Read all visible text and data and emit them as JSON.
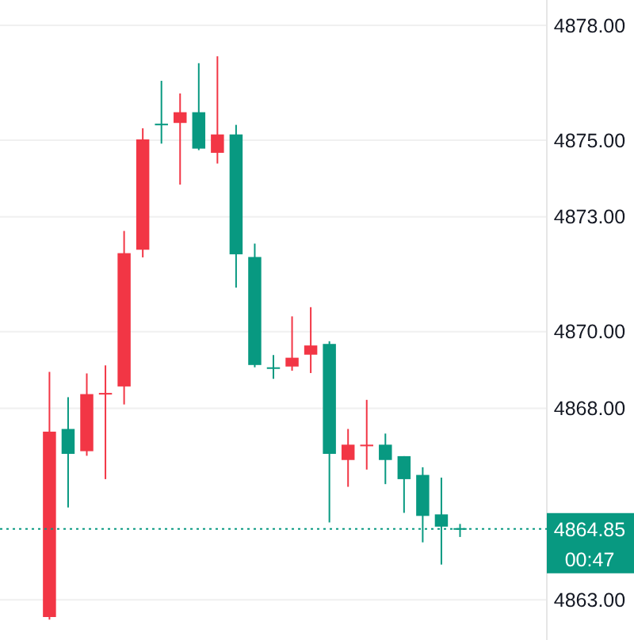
{
  "chart_data": {
    "type": "candlestick",
    "categories": [
      null,
      null,
      null,
      null,
      null,
      null,
      null,
      null,
      null,
      null,
      null,
      null,
      null,
      null,
      null,
      null,
      null,
      null,
      null,
      null,
      null,
      null,
      null,
      null,
      null,
      null,
      null,
      null,
      null
    ],
    "ohlc": [
      null,
      null,
      [
        4862.55,
        4868.95,
        4862.48,
        4867.39
      ],
      [
        4867.46,
        4868.29,
        4865.41,
        4866.81
      ],
      [
        4866.88,
        4868.91,
        4866.76,
        4868.37
      ],
      [
        4868.4,
        4869.12,
        4866.15,
        4868.4
      ],
      [
        4868.57,
        4872.63,
        4868.1,
        4872.05
      ],
      [
        4872.14,
        4875.31,
        4871.94,
        4875.02
      ],
      [
        4875.43,
        4876.55,
        4874.91,
        4875.43
      ],
      [
        4875.45,
        4876.22,
        4873.84,
        4875.73
      ],
      [
        4875.73,
        4877.01,
        4874.74,
        4874.78
      ],
      [
        4874.67,
        4877.19,
        4874.39,
        4875.15
      ],
      [
        4875.15,
        4875.4,
        4871.15,
        4872.02
      ],
      [
        4871.95,
        4872.3,
        4869.07,
        4869.13
      ],
      [
        4869.07,
        4869.39,
        4868.77,
        4869.07
      ],
      [
        4869.09,
        4870.4,
        4868.98,
        4869.32
      ],
      [
        4869.4,
        4870.64,
        4868.92,
        4869.64
      ],
      [
        4869.68,
        4869.75,
        4865.02,
        4866.81
      ],
      [
        4866.65,
        4867.46,
        4865.95,
        4867.05
      ],
      [
        4867.05,
        4868.22,
        4866.4,
        4867.05
      ],
      [
        4867.05,
        4867.34,
        4866.02,
        4866.65
      ],
      [
        4866.75,
        4866.75,
        4865.27,
        4866.15
      ],
      [
        4866.26,
        4866.46,
        4864.5,
        4865.19
      ],
      [
        4865.23,
        4866.19,
        4863.92,
        4864.91
      ],
      [
        4864.87,
        4864.98,
        4864.64,
        4864.85
      ],
      null,
      null,
      null,
      null
    ],
    "colors": [
      null,
      null,
      "#f23645",
      "#089981",
      "#f23645",
      "#f23645",
      "#f23645",
      "#f23645",
      "#089981",
      "#f23645",
      "#089981",
      "#f23645",
      "#089981",
      "#089981",
      "#089981",
      "#f23645",
      "#f23645",
      "#089981",
      "#f23645",
      "#f23645",
      "#089981",
      "#089981",
      "#089981",
      "#089981",
      "#089981",
      null,
      null,
      null,
      null
    ],
    "ylim": [
      4861.95,
      4878.66
    ],
    "yticks": [
      {
        "value": 4863,
        "label": "4863.00"
      },
      {
        "value": 4868,
        "label": "4868.00"
      },
      {
        "value": 4870,
        "label": "4870.00"
      },
      {
        "value": 4873,
        "label": "4873.00"
      },
      {
        "value": 4875,
        "label": "4875.00"
      },
      {
        "value": 4878,
        "label": "4878.00"
      }
    ],
    "grid": "y",
    "ref_lines": [
      {
        "axis": "y",
        "value": 4864.85,
        "label": "4864.85",
        "color": "#089981",
        "line_style": "dotted"
      }
    ],
    "annotations": [
      "00:47"
    ]
  }
}
